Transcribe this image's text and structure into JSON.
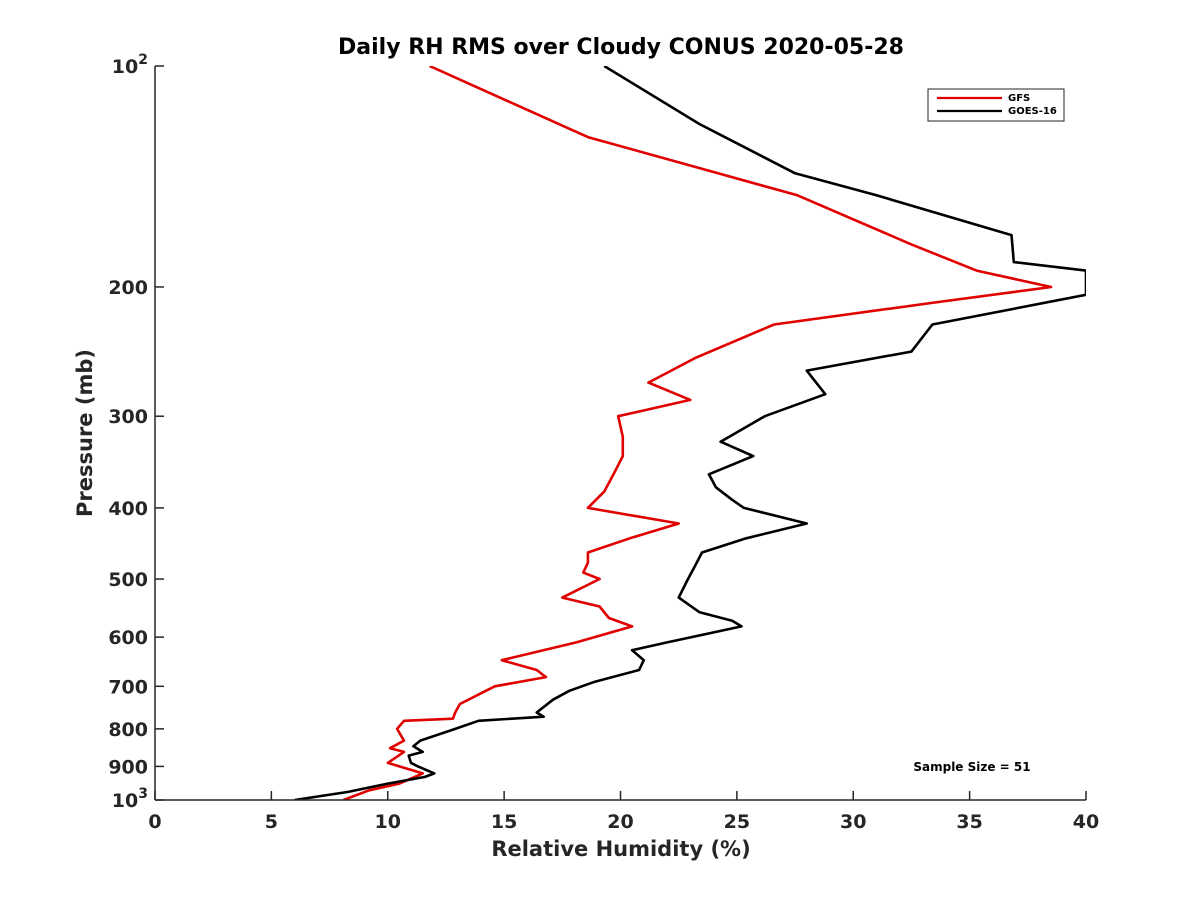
{
  "chart_data": {
    "type": "line",
    "title": "Daily RH RMS over Cloudy CONUS 2020-05-28",
    "xlabel": "Relative Humidity (%)",
    "ylabel": "Pressure (mb)",
    "xlim": [
      0,
      40
    ],
    "ylim": [
      100,
      1000
    ],
    "y_scale": "log",
    "y_reversed": true,
    "grid": false,
    "legend_position": "top-right",
    "x_ticks": [
      "0",
      "5",
      "10",
      "15",
      "20",
      "25",
      "30",
      "35",
      "40"
    ],
    "y_ticks": [
      {
        "value": 100,
        "base": "10",
        "exp": "2"
      },
      {
        "value": 200,
        "label": "200"
      },
      {
        "value": 300,
        "label": "300"
      },
      {
        "value": 400,
        "label": "400"
      },
      {
        "value": 500,
        "label": "500"
      },
      {
        "value": 600,
        "label": "600"
      },
      {
        "value": 700,
        "label": "700"
      },
      {
        "value": 800,
        "label": "800"
      },
      {
        "value": 900,
        "label": "900"
      },
      {
        "value": 1000,
        "base": "10",
        "exp": "3"
      }
    ],
    "annotation": "Sample Size = 51",
    "series": [
      {
        "name": "GFS",
        "color": "#e00000",
        "points": [
          [
            11.8,
            100
          ],
          [
            18.6,
            125
          ],
          [
            27.6,
            150
          ],
          [
            32.5,
            175
          ],
          [
            35.3,
            190
          ],
          [
            38.5,
            200
          ],
          [
            33.5,
            210
          ],
          [
            26.6,
            225
          ],
          [
            23.2,
            250
          ],
          [
            21.2,
            270
          ],
          [
            23.0,
            285
          ],
          [
            19.9,
            300
          ],
          [
            20.1,
            320
          ],
          [
            20.1,
            340
          ],
          [
            19.7,
            360
          ],
          [
            19.3,
            380
          ],
          [
            18.6,
            400
          ],
          [
            22.5,
            420
          ],
          [
            20.4,
            440
          ],
          [
            18.6,
            460
          ],
          [
            18.6,
            475
          ],
          [
            18.4,
            490
          ],
          [
            19.1,
            500
          ],
          [
            17.5,
            530
          ],
          [
            19.1,
            545
          ],
          [
            19.5,
            565
          ],
          [
            20.5,
            580
          ],
          [
            18.1,
            610
          ],
          [
            14.9,
            645
          ],
          [
            16.4,
            665
          ],
          [
            16.8,
            680
          ],
          [
            14.6,
            700
          ],
          [
            13.1,
            740
          ],
          [
            12.9,
            760
          ],
          [
            12.8,
            775
          ],
          [
            10.7,
            780
          ],
          [
            10.4,
            800
          ],
          [
            10.7,
            830
          ],
          [
            10.1,
            850
          ],
          [
            10.7,
            860
          ],
          [
            10.0,
            890
          ],
          [
            11.5,
            920
          ],
          [
            10.5,
            950
          ],
          [
            9.2,
            970
          ],
          [
            8.1,
            1000
          ]
        ]
      },
      {
        "name": "GOES-16",
        "color": "#000000",
        "points": [
          [
            19.3,
            100
          ],
          [
            23.4,
            120
          ],
          [
            27.5,
            140
          ],
          [
            31.0,
            150
          ],
          [
            36.8,
            170
          ],
          [
            36.9,
            185
          ],
          [
            40.0,
            190
          ],
          [
            40.0,
            205
          ],
          [
            33.4,
            225
          ],
          [
            32.5,
            245
          ],
          [
            28.0,
            260
          ],
          [
            28.8,
            280
          ],
          [
            26.2,
            300
          ],
          [
            24.3,
            325
          ],
          [
            25.7,
            340
          ],
          [
            23.8,
            360
          ],
          [
            24.1,
            375
          ],
          [
            24.8,
            390
          ],
          [
            25.3,
            400
          ],
          [
            28.0,
            420
          ],
          [
            25.4,
            440
          ],
          [
            23.5,
            460
          ],
          [
            23.2,
            480
          ],
          [
            22.9,
            500
          ],
          [
            22.5,
            530
          ],
          [
            23.4,
            555
          ],
          [
            24.8,
            570
          ],
          [
            25.2,
            580
          ],
          [
            22.0,
            610
          ],
          [
            20.5,
            625
          ],
          [
            21.0,
            645
          ],
          [
            20.8,
            665
          ],
          [
            18.9,
            690
          ],
          [
            17.8,
            710
          ],
          [
            17.1,
            730
          ],
          [
            16.4,
            760
          ],
          [
            16.7,
            770
          ],
          [
            13.9,
            780
          ],
          [
            12.9,
            800
          ],
          [
            11.4,
            830
          ],
          [
            11.1,
            845
          ],
          [
            11.5,
            860
          ],
          [
            10.9,
            870
          ],
          [
            11.0,
            890
          ],
          [
            11.3,
            900
          ],
          [
            12.0,
            920
          ],
          [
            11.6,
            930
          ],
          [
            10.0,
            950
          ],
          [
            8.3,
            975
          ],
          [
            6.0,
            1000
          ]
        ]
      }
    ]
  }
}
